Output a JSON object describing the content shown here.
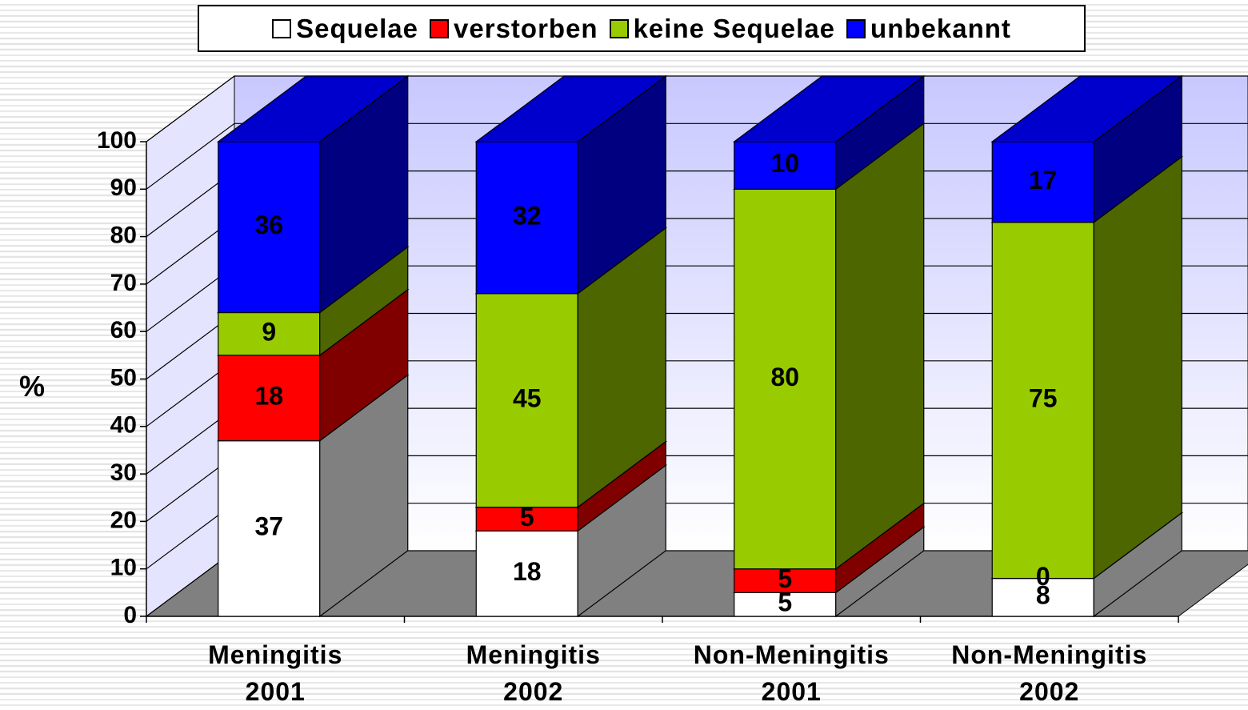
{
  "chart_data": {
    "type": "bar3d_stacked",
    "categories": [
      [
        "Meningitis",
        "2001"
      ],
      [
        "Meningitis",
        "2002"
      ],
      [
        "Non-Meningitis",
        "2001"
      ],
      [
        "Non-Meningitis",
        "2002"
      ]
    ],
    "series": [
      {
        "name": "Sequelae",
        "color": "#ffffff",
        "values": [
          37,
          18,
          5,
          8
        ]
      },
      {
        "name": "verstorben",
        "color": "#ff0000",
        "values": [
          18,
          5,
          5,
          0
        ]
      },
      {
        "name": "keine Sequelae",
        "color": "#99cc00",
        "values": [
          9,
          45,
          80,
          75
        ]
      },
      {
        "name": "unbekannt",
        "color": "#0000ff",
        "values": [
          36,
          32,
          10,
          17
        ]
      }
    ],
    "ylabel": "%",
    "ylim": [
      0,
      100
    ],
    "yticks": [
      0,
      10,
      20,
      30,
      40,
      50,
      60,
      70,
      80,
      90,
      100
    ],
    "grid": true,
    "legend": "top"
  }
}
